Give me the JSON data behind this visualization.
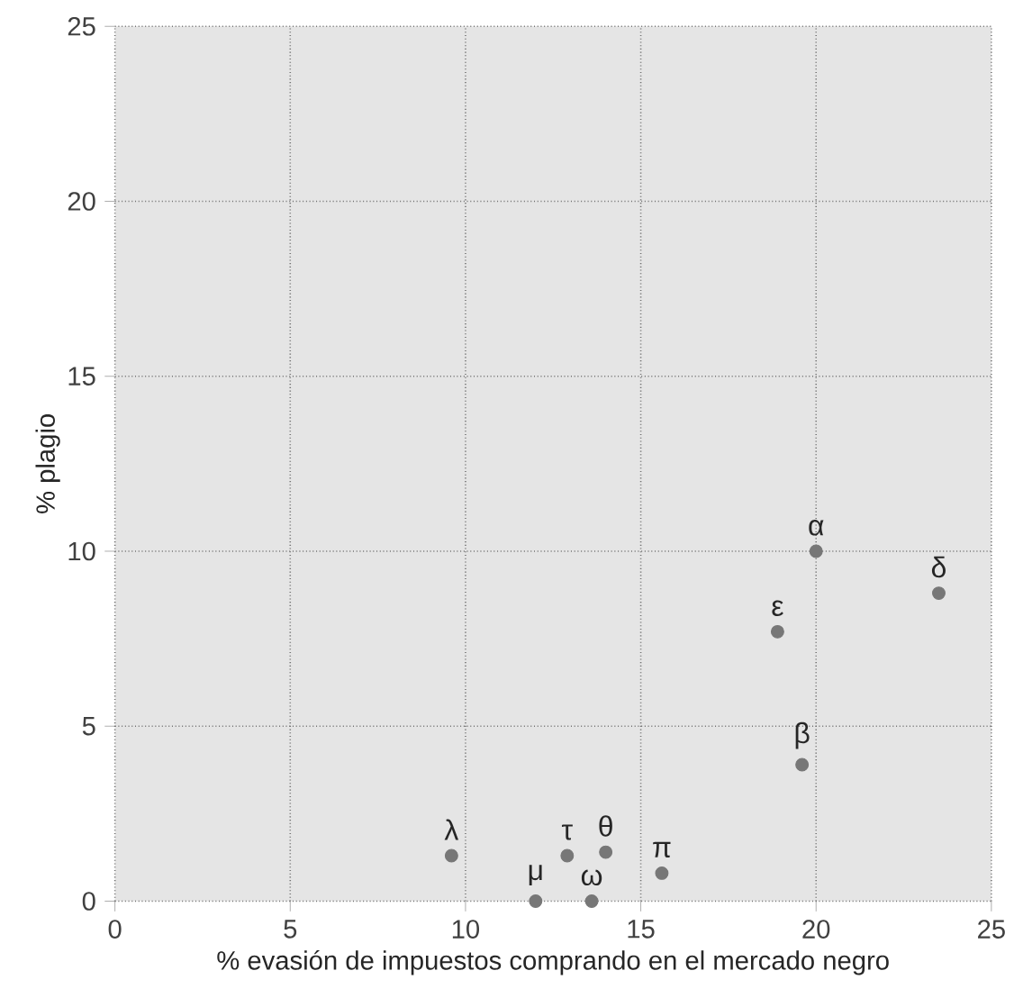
{
  "chart_data": {
    "type": "scatter",
    "xlabel": "% evasión de impuestos comprando en el mercado negro",
    "ylabel": "% plagio",
    "x": [
      20.0,
      23.5,
      18.9,
      19.6,
      15.6,
      14.0,
      12.9,
      13.6,
      12.0,
      9.6
    ],
    "values": [
      10.0,
      8.8,
      7.7,
      3.9,
      0.8,
      1.4,
      1.3,
      0,
      0,
      1.3
    ],
    "color": "#777777",
    "marker": "circle",
    "grid": true,
    "xlim": [
      0,
      25
    ],
    "ylim": [
      0,
      25
    ],
    "xticks": [
      0,
      5,
      10,
      15,
      20,
      25
    ],
    "yticks": [
      0,
      5,
      10,
      15,
      20,
      25
    ],
    "annotations": [
      {
        "text": "α",
        "x": 20.0,
        "y": 10.0
      },
      {
        "text": "δ",
        "x": 23.5,
        "y": 8.8
      },
      {
        "text": "ε",
        "x": 18.9,
        "y": 7.7
      },
      {
        "text": "β",
        "x": 19.6,
        "y": 3.9
      },
      {
        "text": "π",
        "x": 15.6,
        "y": 0.8
      },
      {
        "text": "θ",
        "x": 14.0,
        "y": 1.4
      },
      {
        "text": "τ",
        "x": 12.9,
        "y": 1.3
      },
      {
        "text": "ω",
        "x": 13.6,
        "y": 0
      },
      {
        "text": "μ",
        "x": 12.0,
        "y": 0
      },
      {
        "text": "λ",
        "x": 9.6,
        "y": 1.3
      }
    ]
  }
}
